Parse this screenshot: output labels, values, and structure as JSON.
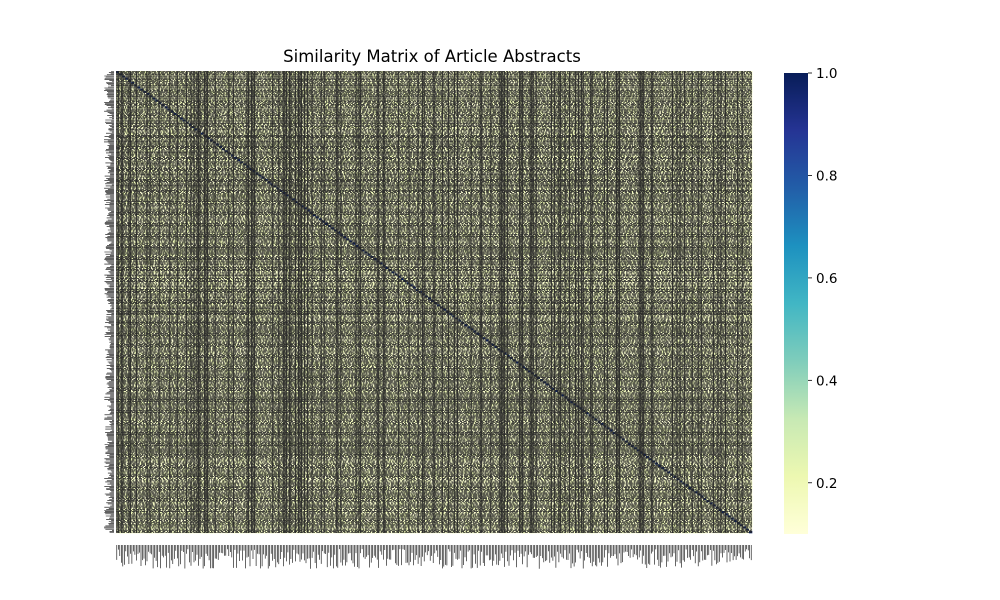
{
  "chart_data": {
    "type": "heatmap",
    "title": "Similarity Matrix of Article Abstracts",
    "xlabel": "",
    "ylabel": "",
    "n_rows": 420,
    "n_cols": 420,
    "value_range": [
      0.1,
      1.0
    ],
    "annotations": true,
    "diagonal_value": 1.0,
    "dominant_range": [
      0.1,
      0.25
    ],
    "colormap": "YlGnBu",
    "colorbar": {
      "ticks": [
        0.2,
        0.4,
        0.6,
        0.8,
        1.0
      ],
      "tick_labels": [
        "0.2",
        "0.4",
        "0.6",
        "0.8",
        "1.0"
      ],
      "vmin": 0.1,
      "vmax": 1.0,
      "position": "right"
    },
    "colors": {
      "annotation_text": "#262626",
      "stops": [
        "#ffffd9",
        "#edf8b1",
        "#c7e9b4",
        "#7fcdbb",
        "#41b6c4",
        "#1d91c0",
        "#225ea8",
        "#253494",
        "#081d58"
      ]
    }
  }
}
